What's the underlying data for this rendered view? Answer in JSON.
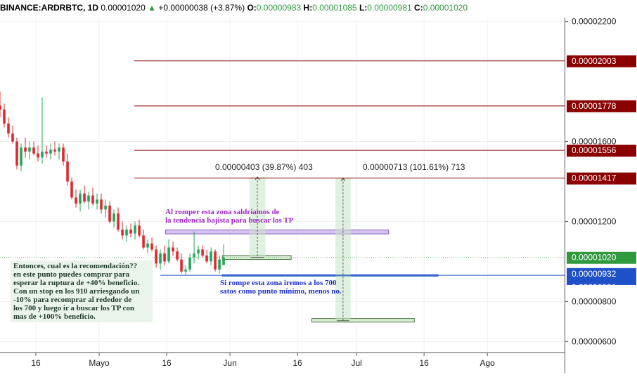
{
  "header": {
    "symbol": "BINANCE:ARDRBTC, 1D",
    "price": "0.00001020",
    "change_arrow": "▲",
    "change": "+0.00000038 (+3.87%)",
    "o_label": "O:",
    "o": "0.00000983",
    "h_label": "H:",
    "h": "0.00001085",
    "l_label": "L:",
    "l": "0.00000981",
    "c_label": "C:",
    "c": "0.00001020"
  },
  "annotations": {
    "recommendation": [
      "Entonces, cual es la recomendación??",
      "en este punto puedes comprar para",
      "esperar la ruptura de +40% beneficio.",
      "Con un stop en los 910 arriesgando un",
      "-10% para recomprar al rededor de",
      "los 700 y luego ir a buscar los TP con",
      "mas de +100% beneficio."
    ],
    "breakout": [
      "Al romper esta zona saldríamos de",
      "la tendencia bajista para buscar los TP"
    ],
    "breakdown": [
      "Si rompe esta zona iremos a los 700",
      "satos como punto mínimo, menos no."
    ],
    "measure_1": "0.00000403 (39.87%) 403",
    "measure_2": "0.00000713 (101.61%) 713"
  },
  "chart_data": {
    "type": "candlestick",
    "title": "BINANCE:ARDRBTC, 1D",
    "y_axis": {
      "ticks": [
        "0.00002200",
        "0.00001600",
        "0.00001200",
        "0.00000800",
        "0.00000600"
      ],
      "tick_values": [
        2200,
        1600,
        1200,
        800,
        600
      ],
      "ylim": [
        545,
        2220
      ],
      "unit_scale": 1e-08
    },
    "x_axis": {
      "ticks": [
        "16",
        "Mayo",
        "16",
        "Jun",
        "16",
        "Jul",
        "16",
        "Ago"
      ],
      "tick_days": [
        15,
        30,
        46,
        61,
        77,
        91,
        107,
        122
      ],
      "xlim": [
        6.5,
        140.3
      ]
    },
    "candles": [
      {
        "d": 6.5,
        "o": 1780,
        "h": 1850,
        "l": 1720,
        "c": 1760
      },
      {
        "d": 7.5,
        "o": 1760,
        "h": 1790,
        "l": 1670,
        "c": 1690
      },
      {
        "d": 8.5,
        "o": 1690,
        "h": 1720,
        "l": 1620,
        "c": 1640
      },
      {
        "d": 9.5,
        "o": 1640,
        "h": 1680,
        "l": 1590,
        "c": 1600
      },
      {
        "d": 10.5,
        "o": 1600,
        "h": 1620,
        "l": 1460,
        "c": 1480
      },
      {
        "d": 11.5,
        "o": 1480,
        "h": 1590,
        "l": 1450,
        "c": 1570
      },
      {
        "d": 12.5,
        "o": 1570,
        "h": 1620,
        "l": 1520,
        "c": 1550
      },
      {
        "d": 13.5,
        "o": 1550,
        "h": 1600,
        "l": 1510,
        "c": 1570
      },
      {
        "d": 14.5,
        "o": 1570,
        "h": 1600,
        "l": 1530,
        "c": 1540
      },
      {
        "d": 15.5,
        "o": 1540,
        "h": 1580,
        "l": 1500,
        "c": 1520
      },
      {
        "d": 16.5,
        "o": 1520,
        "h": 1820,
        "l": 1490,
        "c": 1550
      },
      {
        "d": 17.5,
        "o": 1550,
        "h": 1580,
        "l": 1520,
        "c": 1540
      },
      {
        "d": 18.5,
        "o": 1540,
        "h": 1590,
        "l": 1510,
        "c": 1560
      },
      {
        "d": 19.5,
        "o": 1560,
        "h": 1600,
        "l": 1530,
        "c": 1550
      },
      {
        "d": 20.5,
        "o": 1550,
        "h": 1590,
        "l": 1510,
        "c": 1570
      },
      {
        "d": 21.5,
        "o": 1570,
        "h": 1590,
        "l": 1480,
        "c": 1500
      },
      {
        "d": 22.5,
        "o": 1500,
        "h": 1540,
        "l": 1380,
        "c": 1400
      },
      {
        "d": 23.5,
        "o": 1400,
        "h": 1420,
        "l": 1310,
        "c": 1320
      },
      {
        "d": 24.5,
        "o": 1320,
        "h": 1360,
        "l": 1270,
        "c": 1290
      },
      {
        "d": 25.5,
        "o": 1290,
        "h": 1360,
        "l": 1250,
        "c": 1340
      },
      {
        "d": 26.5,
        "o": 1340,
        "h": 1380,
        "l": 1290,
        "c": 1300
      },
      {
        "d": 27.5,
        "o": 1300,
        "h": 1350,
        "l": 1260,
        "c": 1330
      },
      {
        "d": 28.5,
        "o": 1330,
        "h": 1370,
        "l": 1280,
        "c": 1290
      },
      {
        "d": 29.5,
        "o": 1290,
        "h": 1340,
        "l": 1260,
        "c": 1310
      },
      {
        "d": 30.5,
        "o": 1310,
        "h": 1340,
        "l": 1240,
        "c": 1260
      },
      {
        "d": 31.5,
        "o": 1260,
        "h": 1310,
        "l": 1220,
        "c": 1280
      },
      {
        "d": 32.5,
        "o": 1280,
        "h": 1300,
        "l": 1190,
        "c": 1200
      },
      {
        "d": 33.5,
        "o": 1200,
        "h": 1260,
        "l": 1170,
        "c": 1240
      },
      {
        "d": 34.5,
        "o": 1240,
        "h": 1270,
        "l": 1150,
        "c": 1160
      },
      {
        "d": 35.5,
        "o": 1160,
        "h": 1200,
        "l": 1110,
        "c": 1130
      },
      {
        "d": 36.5,
        "o": 1130,
        "h": 1180,
        "l": 1100,
        "c": 1160
      },
      {
        "d": 37.5,
        "o": 1160,
        "h": 1190,
        "l": 1120,
        "c": 1140
      },
      {
        "d": 38.5,
        "o": 1140,
        "h": 1200,
        "l": 1110,
        "c": 1180
      },
      {
        "d": 39.5,
        "o": 1180,
        "h": 1210,
        "l": 1120,
        "c": 1130
      },
      {
        "d": 40.5,
        "o": 1130,
        "h": 1160,
        "l": 1060,
        "c": 1070
      },
      {
        "d": 41.5,
        "o": 1070,
        "h": 1110,
        "l": 1040,
        "c": 1090
      },
      {
        "d": 42.5,
        "o": 1090,
        "h": 1120,
        "l": 1050,
        "c": 1060
      },
      {
        "d": 43.5,
        "o": 1060,
        "h": 1080,
        "l": 970,
        "c": 990
      },
      {
        "d": 44.5,
        "o": 990,
        "h": 1060,
        "l": 960,
        "c": 1040
      },
      {
        "d": 45.5,
        "o": 1040,
        "h": 1080,
        "l": 980,
        "c": 1000
      },
      {
        "d": 46.5,
        "o": 1000,
        "h": 1110,
        "l": 990,
        "c": 1070
      },
      {
        "d": 47.5,
        "o": 1070,
        "h": 1100,
        "l": 1030,
        "c": 1050
      },
      {
        "d": 48.5,
        "o": 1050,
        "h": 1070,
        "l": 1000,
        "c": 1010
      },
      {
        "d": 49.5,
        "o": 1010,
        "h": 1040,
        "l": 940,
        "c": 950
      },
      {
        "d": 50.5,
        "o": 950,
        "h": 980,
        "l": 930,
        "c": 960
      },
      {
        "d": 51.5,
        "o": 960,
        "h": 1040,
        "l": 950,
        "c": 1020
      },
      {
        "d": 52.5,
        "o": 1020,
        "h": 1150,
        "l": 990,
        "c": 1040
      },
      {
        "d": 53.5,
        "o": 1040,
        "h": 1080,
        "l": 1010,
        "c": 1060
      },
      {
        "d": 54.5,
        "o": 1060,
        "h": 1080,
        "l": 1020,
        "c": 1030
      },
      {
        "d": 55.5,
        "o": 1030,
        "h": 1060,
        "l": 990,
        "c": 1000
      },
      {
        "d": 56.5,
        "o": 1000,
        "h": 1070,
        "l": 980,
        "c": 1050
      },
      {
        "d": 57.5,
        "o": 1050,
        "h": 1060,
        "l": 950,
        "c": 960
      },
      {
        "d": 58.5,
        "o": 960,
        "h": 1030,
        "l": 940,
        "c": 1010
      },
      {
        "d": 59.5,
        "o": 983,
        "h": 1085,
        "l": 981,
        "c": 1020
      }
    ],
    "horizontal_lines": [
      {
        "value": 2003,
        "label": "0.00002003",
        "color": "#8b0000"
      },
      {
        "value": 1778,
        "label": "0.00001778",
        "color": "#8b0000"
      },
      {
        "value": 1556,
        "label": "0.00001556",
        "color": "#8b0000"
      },
      {
        "value": 1417,
        "label": "0.00001417",
        "color": "#8b0000"
      }
    ],
    "current_price": {
      "value": 1020,
      "label": "0.00001020",
      "color": "#2e9a3c"
    },
    "extra_price_labels": [
      {
        "value": 932,
        "label": "0.00000932",
        "color": "#1e50c8"
      },
      {
        "value": 921,
        "label": "0.00000921",
        "color": "#1e50c8"
      }
    ],
    "zones": [
      {
        "name": "breakout-zone",
        "d1": 45.7,
        "d2": 98.6,
        "v1": 1158,
        "v2": 1138,
        "fill": "#d6c4f0",
        "stroke": "#8a5ac8"
      },
      {
        "name": "entry-zone",
        "d1": 59.2,
        "d2": 75.5,
        "v1": 1030,
        "v2": 1010,
        "fill": "#d9ecd5",
        "stroke": "#4a7a44"
      },
      {
        "name": "support-zone",
        "d1": 59.2,
        "d2": 110.3,
        "v1": 934,
        "v2": 927,
        "fill": "#d6e4f8",
        "stroke": "#1e50c8"
      },
      {
        "name": "target-low-zone",
        "d1": 80.4,
        "d2": 104.7,
        "v1": 715,
        "v2": 697,
        "fill": "#d9ecd5",
        "stroke": "#4a7a44"
      }
    ],
    "measures": [
      {
        "name": "measure-1",
        "d1": 65.6,
        "d2": 69.4,
        "v1": 1020,
        "v2": 1423
      },
      {
        "name": "measure-2",
        "d1": 86.0,
        "d2": 89.6,
        "v1": 704,
        "v2": 1417
      }
    ]
  }
}
